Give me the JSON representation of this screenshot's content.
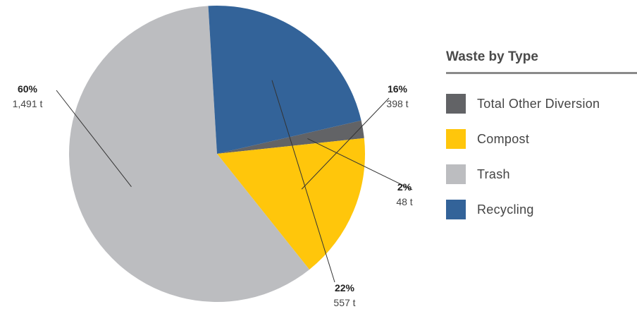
{
  "chart_data": {
    "type": "pie",
    "legend_title": "Waste by Type",
    "legend_position": "right",
    "slices": [
      {
        "name": "Total Other Diversion",
        "value": 48,
        "percent_label": "2%",
        "value_label": "48 t",
        "color": "#626366"
      },
      {
        "name": "Compost",
        "value": 398,
        "percent_label": "16%",
        "value_label": "398 t",
        "color": "#FFC60B"
      },
      {
        "name": "Trash",
        "value": 1491,
        "percent_label": "60%",
        "value_label": "1,491 t",
        "color": "#BCBDC0"
      },
      {
        "name": "Recycling",
        "value": 557,
        "percent_label": "22%",
        "value_label": "557 t",
        "color": "#336399"
      }
    ]
  }
}
